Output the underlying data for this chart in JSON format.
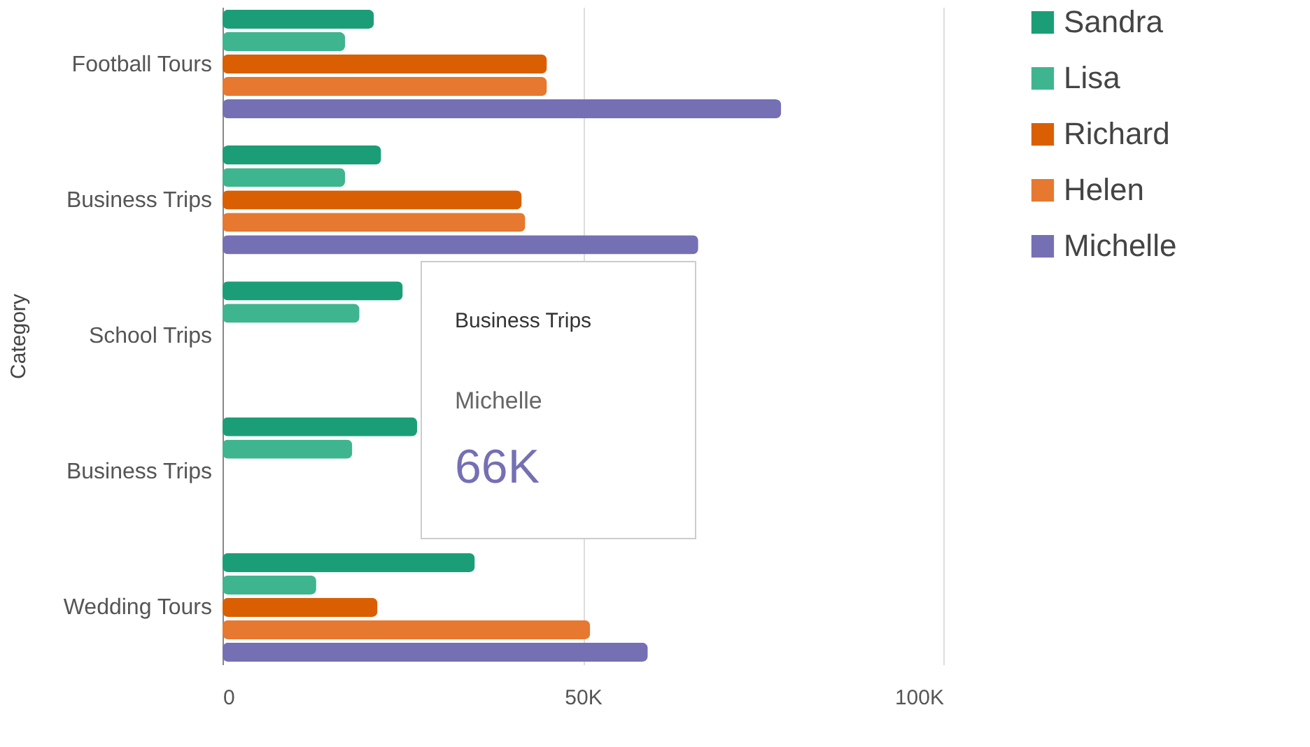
{
  "chart_data": {
    "type": "bar",
    "orientation": "horizontal",
    "ylabel": "Category",
    "categories": [
      "Football Tours",
      "Business Trips",
      "School Trips",
      "Business Trips",
      "Wedding Tours"
    ],
    "series": [
      {
        "name": "Sandra",
        "color": "#1b9e77",
        "values": [
          21000,
          22000,
          25000,
          27000,
          35000
        ]
      },
      {
        "name": "Lisa",
        "color": "#3fb58f",
        "values": [
          17000,
          17000,
          19000,
          18000,
          13000
        ]
      },
      {
        "name": "Richard",
        "color": "#d95f02",
        "values": [
          45000,
          41500,
          null,
          null,
          21500
        ]
      },
      {
        "name": "Helen",
        "color": "#e6782f",
        "values": [
          45000,
          42000,
          null,
          null,
          51000
        ]
      },
      {
        "name": "Michelle",
        "color": "#7570b3",
        "values": [
          77500,
          66000,
          null,
          null,
          59000
        ]
      }
    ],
    "xlim": [
      0,
      100000
    ],
    "xticks": [
      0,
      {
        "value": 50000,
        "label": "50K"
      },
      {
        "value": 100000,
        "label": "100K"
      }
    ],
    "grid": "x",
    "legend": "top right",
    "annotations": [
      "Business Trips",
      "Michelle",
      "66K"
    ]
  }
}
